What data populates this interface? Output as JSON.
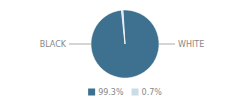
{
  "chart_data": {
    "type": "pie",
    "categories": [
      "BLACK",
      "WHITE"
    ],
    "values": [
      99.3,
      0.7
    ],
    "value_labels": [
      "99.3%",
      "0.7%"
    ],
    "colors": [
      "#3d718f",
      "#ccdce6"
    ],
    "legend": "bottom"
  }
}
